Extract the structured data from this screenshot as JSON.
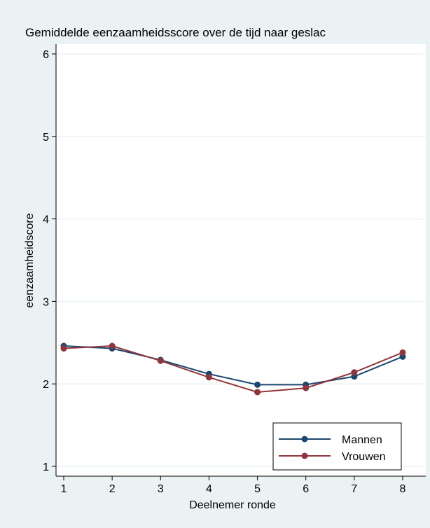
{
  "chart_data": {
    "type": "line",
    "title": "Gemiddelde eenzaamheidsscore over de tijd naar geslac",
    "xlabel": "Deelnemer ronde",
    "ylabel": "eenzaamheidscore",
    "x": [
      1,
      2,
      3,
      4,
      5,
      6,
      7,
      8
    ],
    "xlim": [
      1,
      8
    ],
    "ylim": [
      1,
      6
    ],
    "y_ticks": [
      1,
      2,
      3,
      4,
      5,
      6
    ],
    "x_ticks": [
      1,
      2,
      3,
      4,
      5,
      6,
      7,
      8
    ],
    "grid": true,
    "legend_position": "bottom-right",
    "series": [
      {
        "name": "Mannen",
        "color": "#1a476f",
        "values": [
          2.46,
          2.43,
          2.29,
          2.12,
          1.99,
          1.99,
          2.09,
          2.33
        ]
      },
      {
        "name": "Vrouwen",
        "color": "#90353b",
        "values": [
          2.43,
          2.46,
          2.28,
          2.08,
          1.9,
          1.95,
          2.14,
          2.38
        ]
      }
    ]
  },
  "colors": {
    "outer_background": "#eaf2f3",
    "plot_background": "#ffffff",
    "gridline": "#eaf2f3"
  }
}
